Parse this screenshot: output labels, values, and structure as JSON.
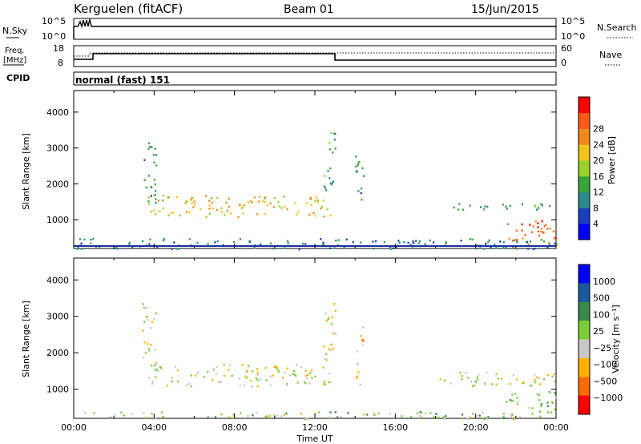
{
  "header": {
    "station": "Kerguelen (fitACF)",
    "beam": "Beam 01",
    "date": "15/Jun/2015"
  },
  "nsky_panel": {
    "left_label": "N.Sky",
    "left_top_tick": "10^5",
    "left_bottom_tick": "10^0",
    "right_label": "N.Search",
    "right_top_tick": "10^5",
    "right_bottom_tick": "10^0"
  },
  "freq_panel": {
    "left_label_top": "Freq.",
    "left_label_bottom": "[MHz]",
    "left_top_tick": "18",
    "left_bottom_tick": "8",
    "right_label": "Nave",
    "right_top_tick": "60",
    "right_bottom_tick": "0"
  },
  "cpid_panel": {
    "label": "CPID",
    "mode_text": "normal (fast) 151"
  },
  "axes": {
    "x_label": "Time UT",
    "x_ticks": [
      "00:00",
      "04:00",
      "08:00",
      "12:00",
      "16:00",
      "20:00",
      "00:00"
    ],
    "y_label": "Slant Range [km]",
    "y_ticks": [
      "1000",
      "2000",
      "3000",
      "4000"
    ],
    "ylim": [
      200,
      4600
    ]
  },
  "colors": {
    "power_scale": [
      "#0000ff",
      "#1a3fbf",
      "#2b8a8a",
      "#3aa33a",
      "#9bd12a",
      "#f0c419",
      "#f08a1a",
      "#ff5a1a",
      "#ff0000"
    ],
    "velocity_scale": [
      "#ff0000",
      "#ff6a00",
      "#ffb000",
      "#c8c8c8",
      "#7ccd3a",
      "#3a8a4a",
      "#1a5a9a",
      "#0000ff"
    ]
  },
  "chart_data": [
    {
      "type": "heatmap",
      "title": "",
      "xlabel": "Time UT",
      "ylabel": "Slant Range [km]",
      "colorbar_label": "Power [dB]",
      "colorbar_ticks": [
        "4",
        "8",
        "12",
        "16",
        "20",
        "24",
        "28"
      ],
      "xlim_hours": [
        0,
        24
      ],
      "ylim": [
        200,
        4600
      ],
      "regions": [
        {
          "x0": 3.7,
          "x1": 12.8,
          "y0": 1100,
          "y1": 1700,
          "level": 20
        },
        {
          "x0": 3.4,
          "x1": 4.1,
          "y0": 1500,
          "y1": 3400,
          "level": 10
        },
        {
          "x0": 12.4,
          "x1": 13.0,
          "y0": 1800,
          "y1": 3500,
          "level": 12
        },
        {
          "x0": 14.0,
          "x1": 14.4,
          "y0": 1000,
          "y1": 2800,
          "level": 10
        },
        {
          "x0": 18.2,
          "x1": 24.0,
          "y0": 1300,
          "y1": 1500,
          "level": 12
        },
        {
          "x0": 21.5,
          "x1": 24.0,
          "y0": 300,
          "y1": 1000,
          "level": 28
        },
        {
          "x0": 0.0,
          "x1": 24.0,
          "y0": 200,
          "y1": 500,
          "level": 8
        }
      ]
    },
    {
      "type": "heatmap",
      "title": "",
      "xlabel": "Time UT",
      "ylabel": "Slant Range [km]",
      "colorbar_label": "Velocity [m s⁻¹]",
      "colorbar_ticks": [
        "1000",
        "500",
        "100",
        "25",
        "−25",
        "−100",
        "−500",
        "−1000"
      ],
      "xlim_hours": [
        0,
        24
      ],
      "ylim": [
        200,
        4600
      ],
      "regions": [
        {
          "x0": 3.7,
          "x1": 12.8,
          "y0": 1100,
          "y1": 1700,
          "velocity": 0
        },
        {
          "x0": 3.4,
          "x1": 4.1,
          "y0": 1500,
          "y1": 3400,
          "velocity": 0
        },
        {
          "x0": 12.4,
          "x1": 13.0,
          "y0": 1800,
          "y1": 3500,
          "velocity": 0
        },
        {
          "x0": 14.0,
          "x1": 14.4,
          "y0": 1000,
          "y1": 2800,
          "velocity": -50
        },
        {
          "x0": 18.2,
          "x1": 24.0,
          "y0": 1100,
          "y1": 1500,
          "velocity": 0
        },
        {
          "x0": 21.5,
          "x1": 24.0,
          "y0": 300,
          "y1": 1000,
          "velocity": 50
        },
        {
          "x0": 0.0,
          "x1": 24.0,
          "y0": 200,
          "y1": 400,
          "velocity": 50
        }
      ]
    }
  ]
}
